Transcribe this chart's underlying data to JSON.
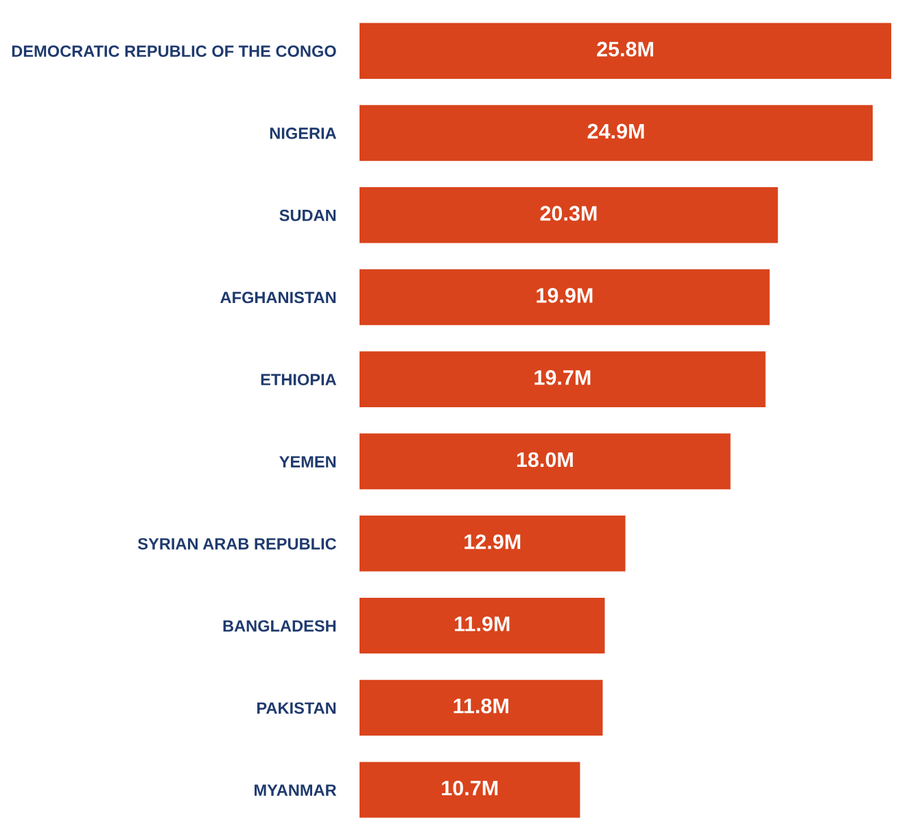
{
  "chart_data": {
    "type": "bar",
    "orientation": "horizontal",
    "categories": [
      "DEMOCRATIC REPUBLIC OF THE CONGO",
      "NIGERIA",
      "SUDAN",
      "AFGHANISTAN",
      "ETHIOPIA",
      "YEMEN",
      "SYRIAN ARAB REPUBLIC",
      "BANGLADESH",
      "PAKISTAN",
      "MYANMAR"
    ],
    "values": [
      25.8,
      24.9,
      20.3,
      19.9,
      19.7,
      18.0,
      12.9,
      11.9,
      11.8,
      10.7
    ],
    "value_labels": [
      "25.8M",
      "24.9M",
      "20.3M",
      "19.9M",
      "19.7M",
      "18.0M",
      "12.9M",
      "11.9M",
      "11.8M",
      "10.7M"
    ],
    "color": "#d9441c",
    "grid": false,
    "legend": false
  }
}
